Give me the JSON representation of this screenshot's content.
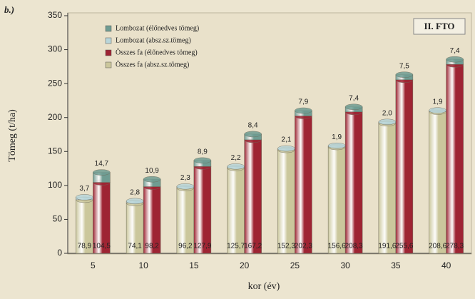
{
  "chart_data": {
    "type": "bar",
    "title": "b.)",
    "subtitle": "II. FTO",
    "x_label": "kor (év)",
    "y_label": "Tömeg (t/ha)",
    "categories": [
      "5",
      "10",
      "15",
      "20",
      "25",
      "30",
      "35",
      "40"
    ],
    "ylim": [
      0,
      350
    ],
    "yticks": [
      0,
      50,
      100,
      150,
      200,
      250,
      300,
      350
    ],
    "series": [
      {
        "name": "Lombozat (élőnedves tömeg)",
        "color": "#6f9c92",
        "values": [
          14.7,
          10.9,
          8.9,
          8.4,
          7.9,
          7.4,
          7.5,
          7.4
        ],
        "value_labels": [
          "14,7",
          "10,9",
          "8,9",
          "8,4",
          "7,9",
          "7,4",
          "7,5",
          "7,4"
        ]
      },
      {
        "name": "Lombozat (absz.sz.tömeg)",
        "color": "#b9d6da",
        "values": [
          3.7,
          2.8,
          2.3,
          2.2,
          2.1,
          1.9,
          2.0,
          1.9
        ],
        "value_labels": [
          "3,7",
          "2,8",
          "2,3",
          "2,2",
          "2,1",
          "1,9",
          "2,0",
          "1,9"
        ]
      },
      {
        "name": "Összes fa (élőnedves tömeg)",
        "color": "#9e2433",
        "values": [
          104.5,
          98.2,
          127.9,
          167.2,
          202.3,
          208.3,
          255.6,
          278.3
        ],
        "value_labels": [
          "104,5",
          "98,2",
          "127,9",
          "167,2",
          "202,3",
          "208,3",
          "255,6",
          "278,3"
        ]
      },
      {
        "name": "Összes fa (absz.sz.tömeg)",
        "color": "#cbc79c",
        "values": [
          78.9,
          74.1,
          96.2,
          125.7,
          152.3,
          156.6,
          191.6,
          208.6
        ],
        "value_labels": [
          "78,9",
          "74,1",
          "96,2",
          "125,7",
          "152,3",
          "156,6",
          "191,6",
          "208,6"
        ]
      }
    ]
  }
}
